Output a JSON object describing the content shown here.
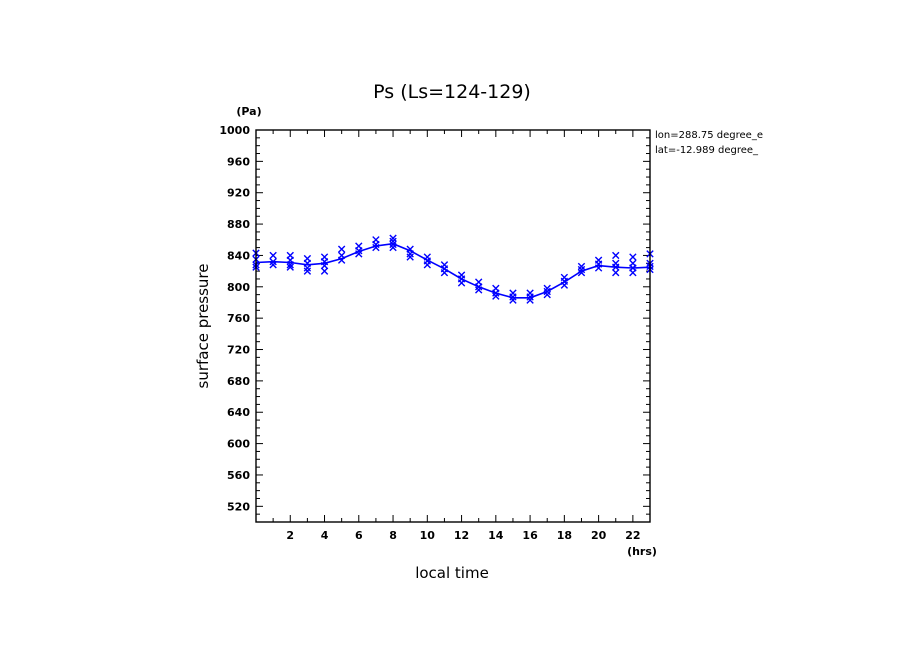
{
  "chart_data": {
    "type": "line",
    "title": "Ps (Ls=124-129)",
    "xlabel": "local time",
    "ylabel": "surface pressure",
    "x_unit": "(hrs)",
    "y_unit": "(Pa)",
    "xlim": [
      0,
      23
    ],
    "ylim": [
      500,
      1000
    ],
    "x_ticks": [
      2,
      4,
      6,
      8,
      10,
      12,
      14,
      16,
      18,
      20,
      22
    ],
    "y_ticks": [
      520,
      560,
      600,
      640,
      680,
      720,
      760,
      800,
      840,
      880,
      920,
      960,
      1000
    ],
    "annotations": [
      "lon=288.75 degree_e",
      "lat=-12.989 degree_"
    ],
    "line_color": "#0000ff",
    "marker_color": "#0000ff",
    "series": [
      {
        "marker": "line",
        "x": [
          0,
          1,
          2,
          3,
          4,
          5,
          6,
          7,
          8,
          9,
          10,
          11,
          12,
          13,
          14,
          15,
          16,
          17,
          18,
          19,
          20,
          21,
          22,
          23
        ],
        "values": [
          831,
          832,
          831,
          828,
          830,
          836,
          845,
          852,
          855,
          846,
          834,
          823,
          810,
          800,
          792,
          786,
          786,
          794,
          806,
          820,
          827,
          825,
          824,
          825
        ]
      },
      {
        "marker": "x",
        "points": [
          [
            0,
            843
          ],
          [
            0,
            835
          ],
          [
            0,
            828
          ],
          [
            0,
            825
          ],
          [
            1,
            840
          ],
          [
            1,
            832
          ],
          [
            1,
            828
          ],
          [
            2,
            840
          ],
          [
            2,
            834
          ],
          [
            2,
            828
          ],
          [
            2,
            825
          ],
          [
            3,
            836
          ],
          [
            3,
            830
          ],
          [
            3,
            824
          ],
          [
            3,
            820
          ],
          [
            4,
            838
          ],
          [
            4,
            832
          ],
          [
            4,
            827
          ],
          [
            4,
            820
          ],
          [
            5,
            848
          ],
          [
            5,
            840
          ],
          [
            5,
            834
          ],
          [
            6,
            852
          ],
          [
            6,
            846
          ],
          [
            6,
            842
          ],
          [
            7,
            860
          ],
          [
            7,
            854
          ],
          [
            7,
            850
          ],
          [
            8,
            862
          ],
          [
            8,
            858
          ],
          [
            8,
            854
          ],
          [
            8,
            850
          ],
          [
            9,
            848
          ],
          [
            9,
            842
          ],
          [
            9,
            838
          ],
          [
            10,
            838
          ],
          [
            10,
            833
          ],
          [
            10,
            828
          ],
          [
            11,
            828
          ],
          [
            11,
            823
          ],
          [
            11,
            818
          ],
          [
            12,
            815
          ],
          [
            12,
            810
          ],
          [
            12,
            805
          ],
          [
            13,
            806
          ],
          [
            13,
            800
          ],
          [
            13,
            796
          ],
          [
            14,
            798
          ],
          [
            14,
            792
          ],
          [
            14,
            788
          ],
          [
            15,
            792
          ],
          [
            15,
            787
          ],
          [
            15,
            783
          ],
          [
            16,
            792
          ],
          [
            16,
            787
          ],
          [
            16,
            783
          ],
          [
            17,
            798
          ],
          [
            17,
            794
          ],
          [
            17,
            790
          ],
          [
            18,
            812
          ],
          [
            18,
            807
          ],
          [
            18,
            802
          ],
          [
            19,
            826
          ],
          [
            19,
            822
          ],
          [
            19,
            818
          ],
          [
            20,
            834
          ],
          [
            20,
            829
          ],
          [
            20,
            824
          ],
          [
            21,
            840
          ],
          [
            21,
            830
          ],
          [
            21,
            825
          ],
          [
            21,
            818
          ],
          [
            22,
            838
          ],
          [
            22,
            830
          ],
          [
            22,
            824
          ],
          [
            22,
            818
          ],
          [
            23,
            842
          ],
          [
            23,
            830
          ],
          [
            23,
            826
          ],
          [
            23,
            822
          ]
        ]
      }
    ]
  }
}
